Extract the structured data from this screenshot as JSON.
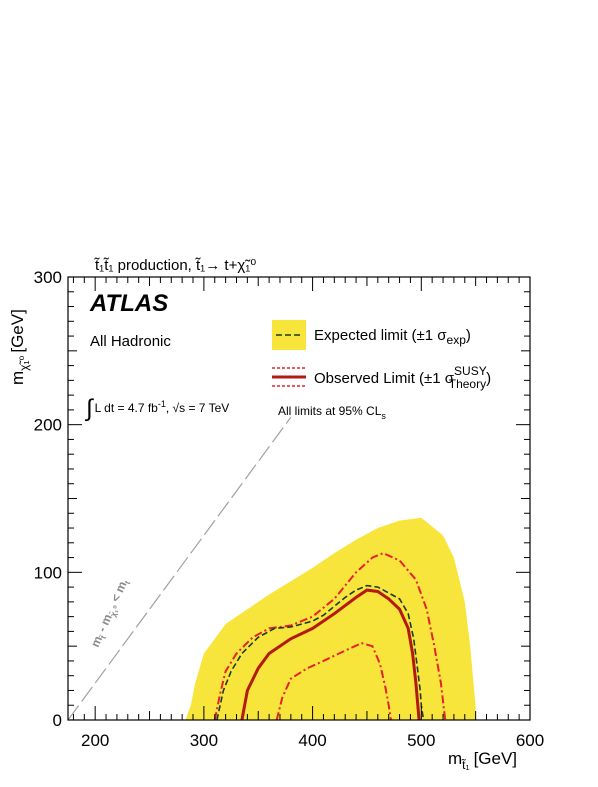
{
  "chart_data": {
    "type": "line",
    "title": "t̃₁t̃₁ production, t̃₁→ t+χ̃₁⁰",
    "xlabel": "m",
    "xlabel_sub": "t̃₁",
    "xlabel_unit": "[GeV]",
    "ylabel": "m",
    "ylabel_sub": "χ̃₁⁰",
    "ylabel_unit": "[GeV]",
    "xlim": [
      175,
      600
    ],
    "ylim": [
      0,
      300
    ],
    "xticks": [
      200,
      300,
      400,
      500,
      600
    ],
    "yticks": [
      0,
      100,
      200,
      300
    ],
    "xtick_labels": [
      "200",
      "300",
      "400",
      "500",
      "600"
    ],
    "ytick_labels": [
      "0",
      "100",
      "200",
      "300"
    ],
    "annotations": {
      "experiment": "ATLAS",
      "channel": "All Hadronic",
      "lumi_integral": "∫",
      "lumi_text": "L dt = 4.7 fb",
      "lumi_exp": "-1",
      "energy_text": ", √s = 7 TeV",
      "cls_text": "All limits at 95% CL",
      "cls_sub": "s",
      "diagonal_label": "m",
      "diagonal_label_mid": " - m",
      "diagonal_label_end": " < m",
      "diagonal_sub_a": "t̃",
      "diagonal_sub_b": "χ̃₁⁰",
      "diagonal_sub_c": "t"
    },
    "legend": {
      "placement": "top-right",
      "expected": "Expected limit (±1 σ",
      "expected_sub": "exp",
      "expected_close": ")",
      "observed": "Observed Limit (±1 σ",
      "observed_sup": "SUSY",
      "observed_sub": "Theory",
      "observed_close": ")"
    },
    "colors": {
      "band": "#f7e53b",
      "observed": "#b21a12",
      "observed_theory": "#e8202a",
      "expected": "#1f3a1f",
      "diagonal": "#a0a0a0"
    },
    "series": [
      {
        "id": "expected_band",
        "x": [
          283,
          288,
          292,
          300,
          310,
          320,
          340,
          360,
          380,
          400,
          420,
          440,
          460,
          480,
          500,
          520,
          530,
          540,
          545,
          548,
          550,
          550,
          530,
          500,
          450,
          400,
          350,
          310,
          283
        ],
        "y": [
          0,
          10,
          25,
          45,
          55,
          65,
          75,
          85,
          94,
          103,
          113,
          122,
          130,
          135,
          137,
          125,
          110,
          80,
          50,
          25,
          10,
          0,
          0,
          0,
          0,
          0,
          0,
          0,
          0
        ]
      },
      {
        "id": "expected",
        "x": [
          312,
          318,
          325,
          335,
          350,
          365,
          380,
          400,
          410,
          420,
          430,
          440,
          450,
          460,
          470,
          480,
          488,
          493,
          496,
          499,
          500,
          502
        ],
        "y": [
          0,
          20,
          33,
          45,
          56,
          62,
          63,
          67,
          71,
          77,
          83,
          88,
          91,
          90,
          86,
          82,
          72,
          55,
          38,
          20,
          10,
          0
        ]
      },
      {
        "id": "observed",
        "x": [
          335,
          340,
          350,
          360,
          380,
          400,
          420,
          440,
          450,
          460,
          470,
          480,
          488,
          492,
          495,
          498
        ],
        "y": [
          0,
          20,
          35,
          45,
          55,
          62,
          72,
          83,
          88,
          87,
          82,
          75,
          62,
          45,
          25,
          0
        ]
      },
      {
        "id": "observed_theory_up",
        "x": [
          310,
          315,
          320,
          330,
          345,
          360,
          380,
          400,
          420,
          440,
          455,
          465,
          480,
          495,
          505,
          512,
          518,
          522
        ],
        "y": [
          0,
          18,
          33,
          45,
          56,
          62,
          64,
          70,
          82,
          100,
          110,
          113,
          108,
          95,
          75,
          50,
          25,
          0
        ]
      },
      {
        "id": "observed_theory_down",
        "x": [
          367,
          372,
          380,
          395,
          410,
          430,
          445,
          455,
          462,
          467,
          470,
          472
        ],
        "y": [
          0,
          15,
          28,
          35,
          40,
          47,
          52,
          50,
          38,
          22,
          10,
          0
        ]
      },
      {
        "id": "diagonal",
        "x": [
          175,
          380
        ],
        "y": [
          0,
          205
        ]
      }
    ]
  }
}
